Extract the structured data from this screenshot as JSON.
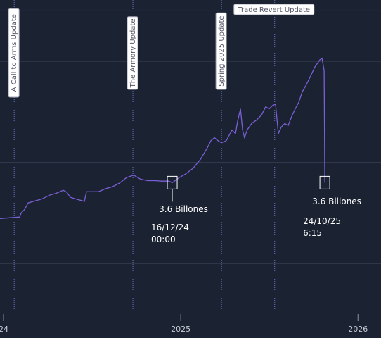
{
  "chart_data": {
    "type": "line",
    "x": [
      2023.98,
      2024.091,
      2024.099,
      2024.119,
      2024.139,
      2024.178,
      2024.218,
      2024.258,
      2024.297,
      2024.337,
      2024.357,
      2024.377,
      2024.416,
      2024.456,
      2024.468,
      2024.496,
      2024.535,
      2024.575,
      2024.615,
      2024.654,
      2024.694,
      2024.734,
      2024.773,
      2024.813,
      2024.853,
      2024.892,
      2024.932,
      2024.952,
      2024.992,
      2025.031,
      2025.071,
      2025.111,
      2025.15,
      2025.17,
      2025.19,
      2025.21,
      2025.23,
      2025.257,
      2025.289,
      2025.309,
      2025.321,
      2025.337,
      2025.349,
      2025.36,
      2025.376,
      2025.4,
      2025.428,
      2025.456,
      2025.479,
      2025.499,
      2025.519,
      2025.535,
      2025.551,
      2025.567,
      2025.587,
      2025.606,
      2025.626,
      2025.646,
      2025.666,
      2025.686,
      2025.709,
      2025.733,
      2025.757,
      2025.785,
      2025.797,
      2025.809,
      2025.813
    ],
    "series": [
      {
        "color": "#7b5fd6",
        "values": [
          2.89,
          2.92,
          3.0,
          3.07,
          3.2,
          3.24,
          3.28,
          3.35,
          3.39,
          3.45,
          3.41,
          3.31,
          3.27,
          3.23,
          3.42,
          3.42,
          3.42,
          3.48,
          3.52,
          3.59,
          3.7,
          3.75,
          3.67,
          3.64,
          3.64,
          3.63,
          3.63,
          3.6,
          3.7,
          3.78,
          3.89,
          4.06,
          4.29,
          4.43,
          4.49,
          4.43,
          4.39,
          4.43,
          4.64,
          4.57,
          4.82,
          5.06,
          4.64,
          4.49,
          4.65,
          4.77,
          4.84,
          4.94,
          5.1,
          5.06,
          5.13,
          5.15,
          4.57,
          4.7,
          4.77,
          4.73,
          4.91,
          5.06,
          5.19,
          5.4,
          5.54,
          5.71,
          5.89,
          6.03,
          6.06,
          5.82,
          3.6
        ]
      }
    ],
    "xlim": [
      2023.98,
      2026.13
    ],
    "ylim": [
      1,
      7.2
    ],
    "xticks": [
      {
        "value": 2024,
        "label": "24"
      },
      2025,
      2026
    ],
    "yticks": [
      2,
      4,
      6,
      7
    ],
    "grid": true,
    "events": [
      {
        "x": 2024.06,
        "label": "A Call to Arms Update"
      },
      {
        "x": 2024.73,
        "label": "The Armory Update"
      },
      {
        "x": 2025.23,
        "label": "Spring 2025 Update"
      },
      {
        "x": 2025.53,
        "label": "Trade Revert Update"
      }
    ],
    "annotations": [
      {
        "x": 2024.952,
        "y": 3.6,
        "text": "3.6 Billones",
        "date": "16/12/24",
        "time": "00:00"
      },
      {
        "x": 2025.813,
        "y": 3.6,
        "text": "3.6 Billones",
        "date": "24/10/25",
        "time": "6:15"
      }
    ]
  }
}
